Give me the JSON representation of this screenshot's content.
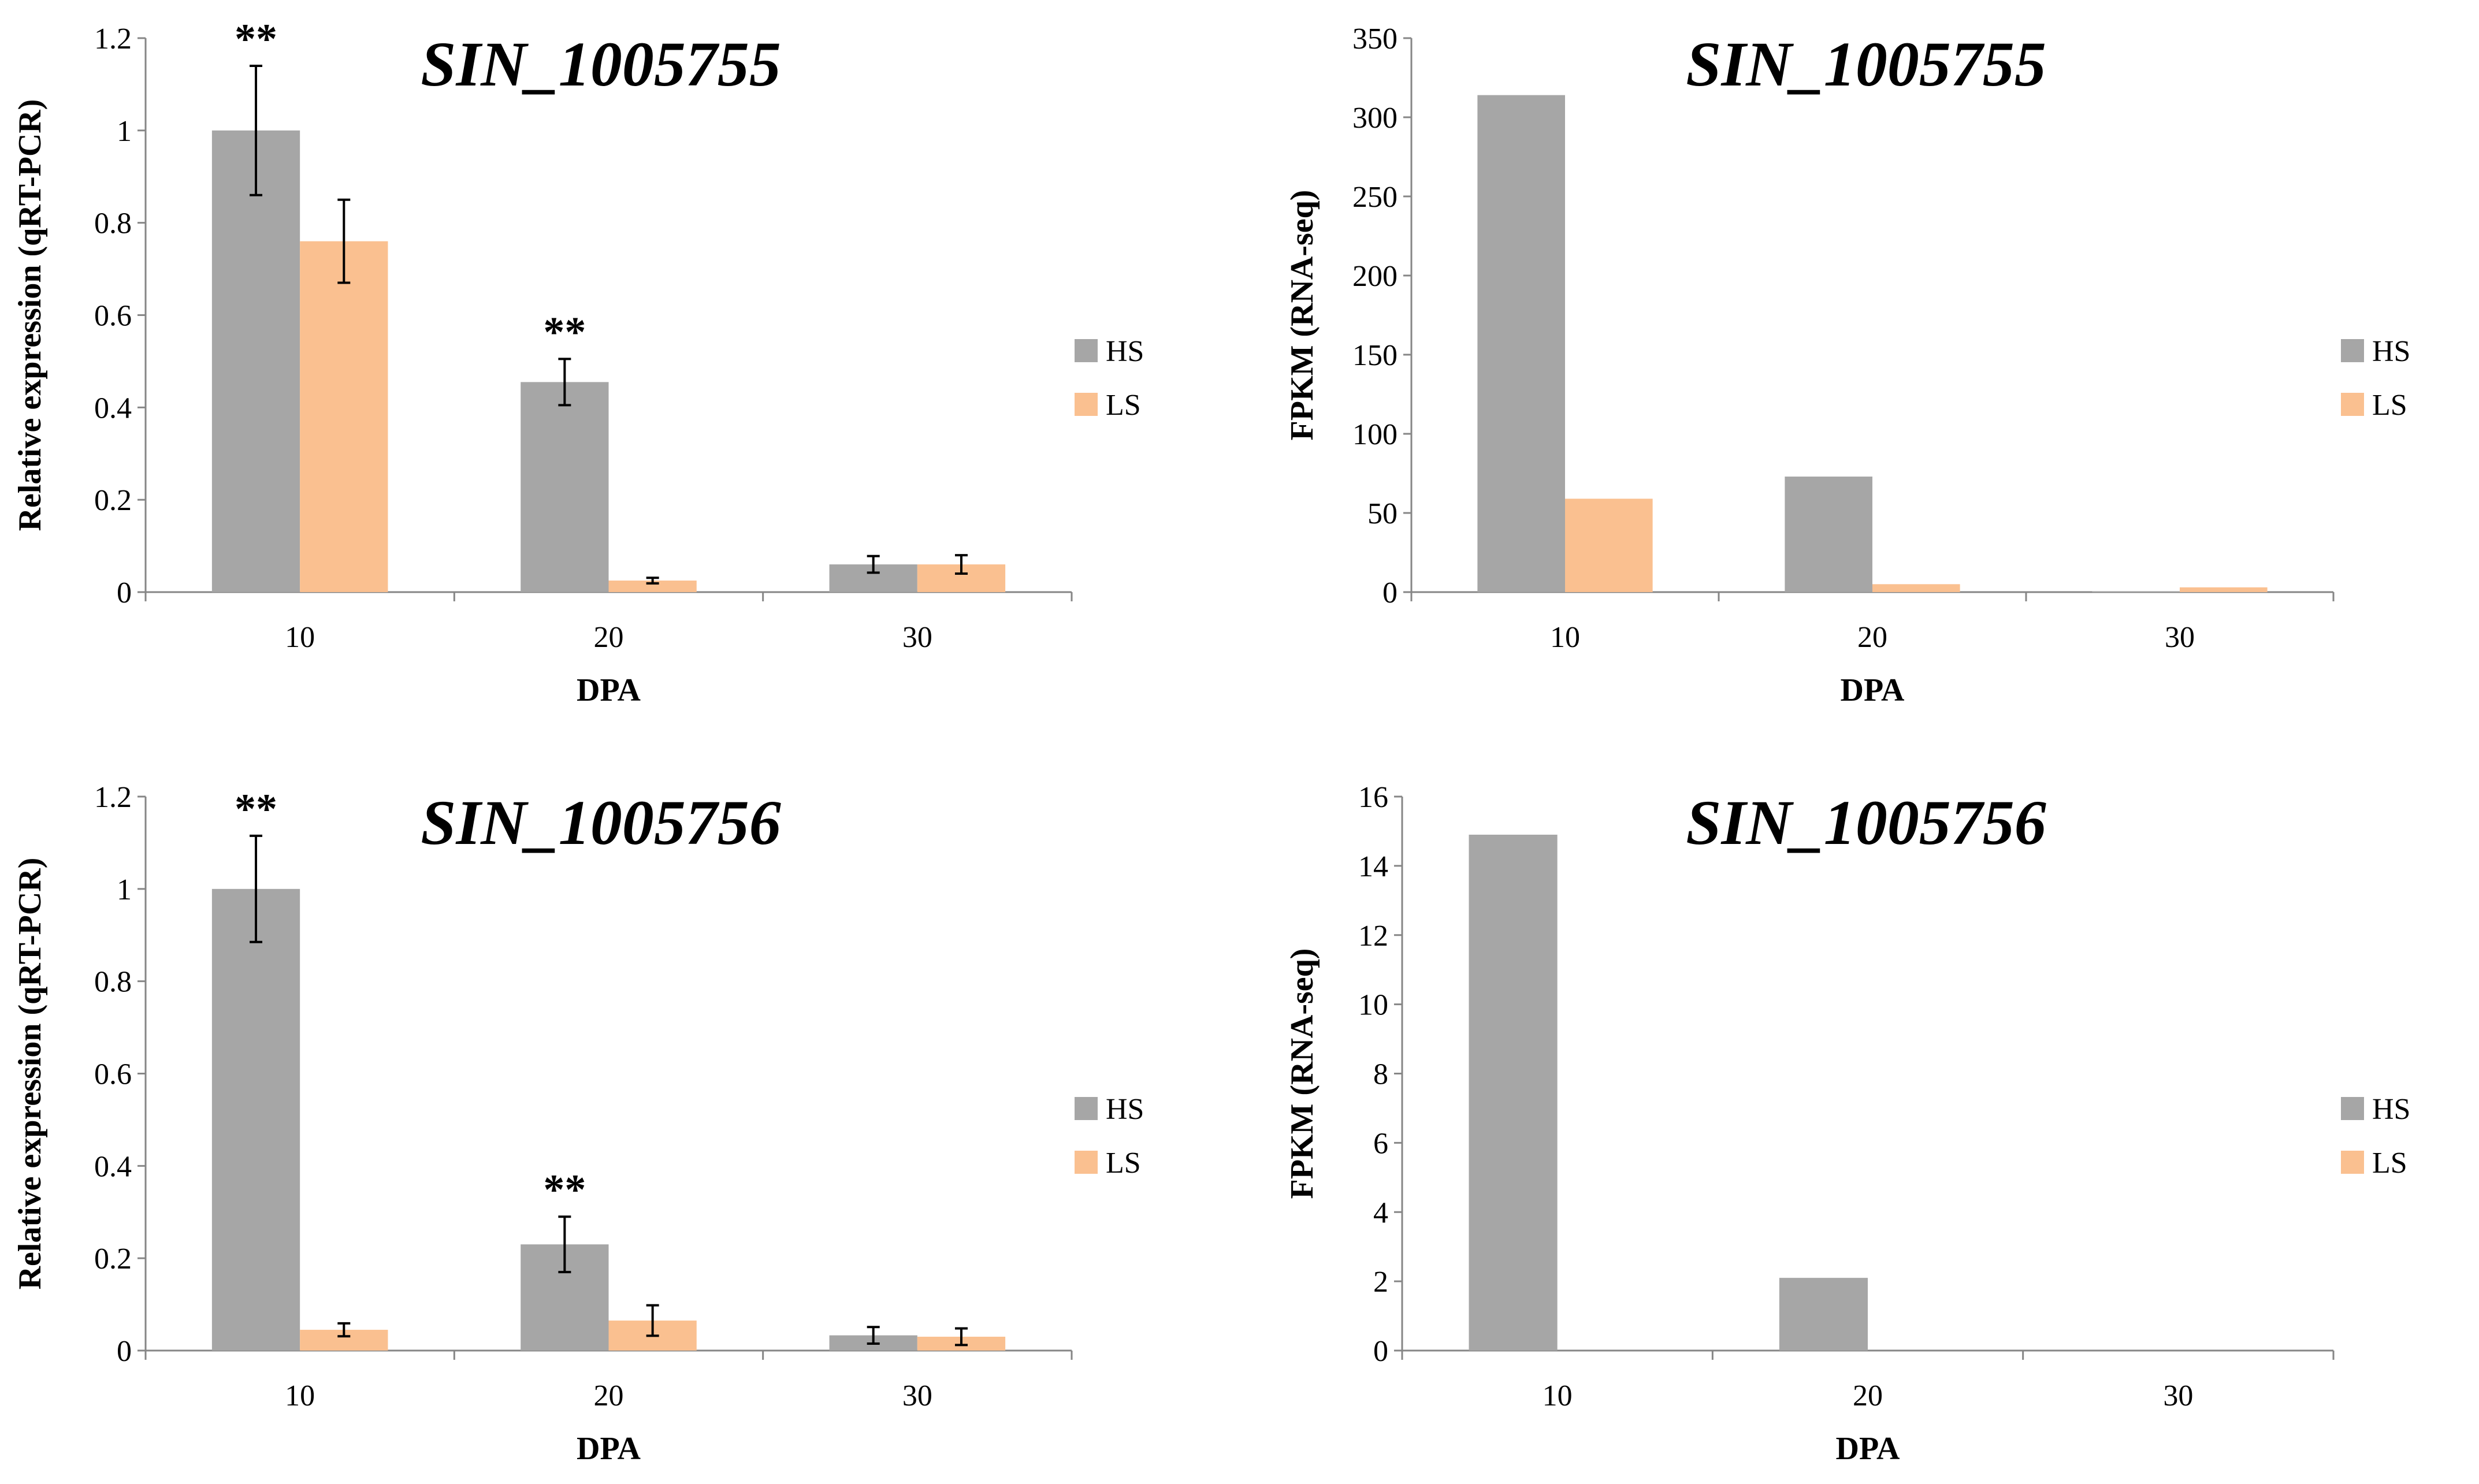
{
  "colors": {
    "HS": "#a6a6a6",
    "LS": "#fac090",
    "axis": "#868686",
    "error": "#000000"
  },
  "chart_data": [
    {
      "type": "bar",
      "title": "SIN_1005755",
      "xlabel": "DPA",
      "ylabel": "Relative expression (qRT-PCR)",
      "categories": [
        "10",
        "20",
        "30"
      ],
      "ylim": [
        0,
        1.2
      ],
      "yticks": [
        "0",
        "0.2",
        "0.4",
        "0.6",
        "0.8",
        "1",
        "1.2"
      ],
      "series": [
        {
          "name": "HS",
          "values": [
            1.0,
            0.455,
            0.06
          ],
          "errors": [
            0.14,
            0.05,
            0.018
          ]
        },
        {
          "name": "LS",
          "values": [
            0.76,
            0.025,
            0.06
          ],
          "errors": [
            0.09,
            0.006,
            0.02
          ]
        }
      ],
      "annotations": [
        {
          "category": "10",
          "text": "**"
        },
        {
          "category": "20",
          "text": "**"
        }
      ],
      "legend": "right"
    },
    {
      "type": "bar",
      "title": "SIN_1005755",
      "xlabel": "DPA",
      "ylabel": "FPKM (RNA-seq)",
      "categories": [
        "10",
        "20",
        "30"
      ],
      "ylim": [
        0,
        350
      ],
      "yticks": [
        "0",
        "50",
        "100",
        "150",
        "200",
        "250",
        "300",
        "350"
      ],
      "series": [
        {
          "name": "HS",
          "values": [
            314,
            73,
            0.5
          ]
        },
        {
          "name": "LS",
          "values": [
            59,
            5,
            3
          ]
        }
      ],
      "annotations": [],
      "legend": "right"
    },
    {
      "type": "bar",
      "title": "SIN_1005756",
      "xlabel": "DPA",
      "ylabel": "Relative expression (qRT-PCR)",
      "categories": [
        "10",
        "20",
        "30"
      ],
      "ylim": [
        0,
        1.2
      ],
      "yticks": [
        "0",
        "0.2",
        "0.4",
        "0.6",
        "0.8",
        "1",
        "1.2"
      ],
      "series": [
        {
          "name": "HS",
          "values": [
            1.0,
            0.23,
            0.033
          ],
          "errors": [
            0.115,
            0.06,
            0.018
          ]
        },
        {
          "name": "LS",
          "values": [
            0.045,
            0.065,
            0.03
          ],
          "errors": [
            0.014,
            0.033,
            0.018
          ]
        }
      ],
      "annotations": [
        {
          "category": "10",
          "text": "**"
        },
        {
          "category": "20",
          "text": "**"
        }
      ],
      "legend": "right"
    },
    {
      "type": "bar",
      "title": "SIN_1005756",
      "xlabel": "DPA",
      "ylabel": "FPKM (RNA-seq)",
      "categories": [
        "10",
        "20",
        "30"
      ],
      "ylim": [
        0,
        16
      ],
      "yticks": [
        "0",
        "2",
        "4",
        "6",
        "8",
        "10",
        "12",
        "14",
        "16"
      ],
      "series": [
        {
          "name": "HS",
          "values": [
            14.9,
            2.1,
            0.0
          ]
        },
        {
          "name": "LS",
          "values": [
            0.0,
            0.0,
            0.0
          ]
        }
      ],
      "annotations": [],
      "legend": "right"
    }
  ]
}
